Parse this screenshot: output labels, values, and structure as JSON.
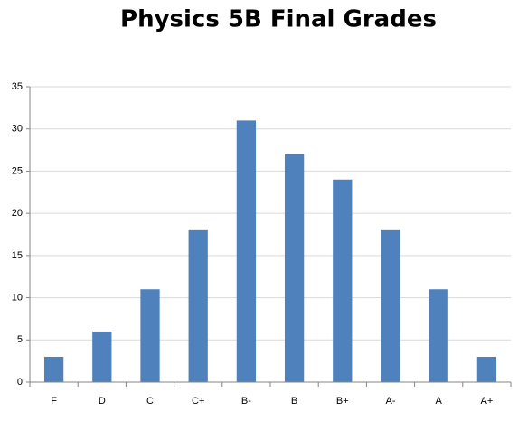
{
  "chart_data": {
    "type": "bar",
    "title": "Physics 5B Final Grades",
    "categories": [
      "F",
      "D",
      "C",
      "C+",
      "B-",
      "B",
      "B+",
      "A-",
      "A",
      "A+"
    ],
    "values": [
      3,
      6,
      11,
      18,
      31,
      27,
      24,
      18,
      11,
      3
    ],
    "color": "#4f81bd",
    "ylim": [
      0,
      35
    ],
    "yticks": [
      0,
      5,
      10,
      15,
      20,
      25,
      30,
      35
    ],
    "grid": true
  }
}
